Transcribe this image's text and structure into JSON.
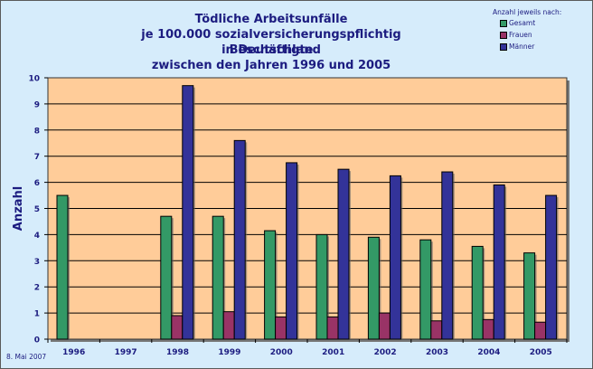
{
  "title_lines": [
    "Tödliche Arbeitsunfälle",
    "je 100.000 sozialversicherungspflichtig Beschäftigte",
    "in Deutschland",
    "zwischen den Jahren 1996 und 2005"
  ],
  "legend": {
    "header": "Anzahl jeweils nach:",
    "items": [
      {
        "label": "Gesamt",
        "color": "#339966"
      },
      {
        "label": "Frauen",
        "color": "#993366"
      },
      {
        "label": "Männer",
        "color": "#333399"
      }
    ]
  },
  "footnote": "8. Mai 2007",
  "colors": {
    "plot_background": "#ffcc99",
    "frame_background": "#d6ecfb",
    "text": "#1c1c80"
  },
  "chart_data": {
    "type": "bar",
    "categories": [
      "1996",
      "1997",
      "1998",
      "1999",
      "2000",
      "2001",
      "2002",
      "2003",
      "2004",
      "2005"
    ],
    "series": [
      {
        "name": "Gesamt",
        "color": "#339966",
        "values": [
          5.5,
          null,
          4.7,
          4.7,
          4.15,
          4.0,
          3.9,
          3.8,
          3.55,
          3.3
        ]
      },
      {
        "name": "Frauen",
        "color": "#993366",
        "values": [
          null,
          null,
          0.9,
          1.05,
          0.85,
          0.85,
          1.0,
          0.7,
          0.75,
          0.65
        ]
      },
      {
        "name": "Männer",
        "color": "#333399",
        "values": [
          null,
          null,
          9.7,
          7.6,
          6.75,
          6.5,
          6.25,
          6.4,
          5.9,
          5.5
        ]
      }
    ],
    "ylabel": "Anzahl",
    "ylim": [
      0,
      10
    ],
    "yticks": [
      "0",
      "1",
      "2",
      "3",
      "4",
      "5",
      "6",
      "7",
      "8",
      "9",
      "10"
    ],
    "grid": true,
    "legend_position": "top-right"
  }
}
